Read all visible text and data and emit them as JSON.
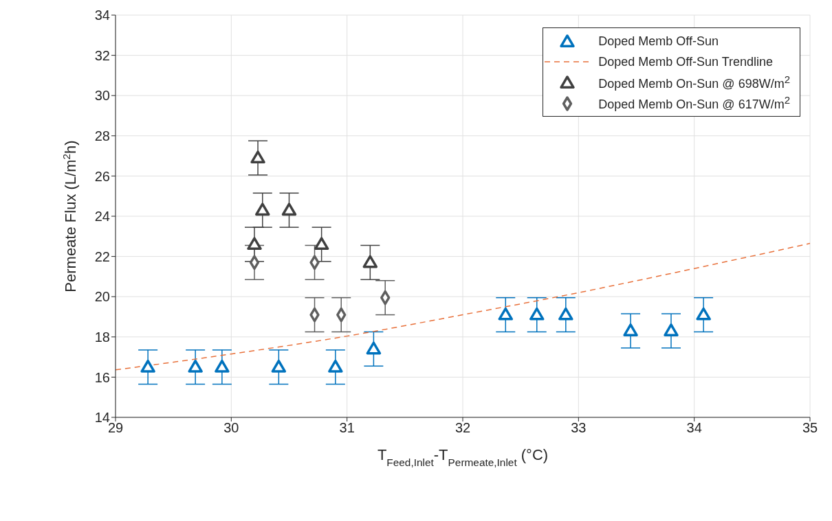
{
  "chart_data": {
    "type": "scatter",
    "xlabel": "T$_{Feed,Inlet}$-T$_{Permeate,Inlet}$ (°C)",
    "ylabel": "Permeate Flux (L/m$^{2}$h)",
    "xlim": [
      29,
      35
    ],
    "xticks": [
      29,
      30,
      31,
      32,
      33,
      34,
      35
    ],
    "ylim": [
      14,
      34
    ],
    "yticks": [
      14,
      16,
      18,
      20,
      22,
      24,
      26,
      28,
      30,
      32,
      34
    ],
    "grid": true,
    "legend": "top right",
    "series": [
      {
        "name": "Doped Memb Off-Sun",
        "color": "#0072bd",
        "marker": "triangle",
        "x": [
          29.28,
          29.69,
          29.92,
          30.41,
          30.9,
          31.23,
          32.37,
          32.64,
          32.89,
          33.45,
          33.8,
          34.08
        ],
        "values": [
          16.5,
          16.5,
          16.5,
          16.5,
          16.5,
          17.4,
          19.1,
          19.1,
          19.1,
          18.3,
          18.3,
          19.1
        ],
        "errors": [
          0.85,
          0.85,
          0.85,
          0.85,
          0.85,
          0.85,
          0.85,
          0.85,
          0.85,
          0.85,
          0.85,
          0.85
        ]
      },
      {
        "name": "Doped Memb Off-Sun Trendline",
        "type": "line",
        "line_style": "dashed",
        "marker": "none",
        "color": "#e8703a",
        "x": [
          29,
          30,
          31,
          32,
          33,
          34,
          35
        ],
        "values": [
          16.36,
          17.15,
          18.04,
          19.1,
          20.2,
          21.4,
          22.65
        ]
      },
      {
        "name": "Doped Memb On-Sun @ 698W/m$^{2}$",
        "color": "#404040",
        "marker": "triangle",
        "x": [
          30.2,
          30.23,
          30.27,
          30.5,
          30.78,
          31.2
        ],
        "values": [
          22.6,
          26.9,
          24.3,
          24.3,
          22.6,
          21.7
        ],
        "errors": [
          0.85,
          0.85,
          0.85,
          0.85,
          0.85,
          0.85
        ]
      },
      {
        "name": "Doped Memb On-Sun @ 617W/m$^{2}$",
        "color": "#5f5f5f",
        "marker": "diamond",
        "x": [
          30.2,
          30.72,
          30.72,
          30.95,
          31.33
        ],
        "values": [
          21.7,
          21.7,
          19.1,
          19.1,
          19.95
        ],
        "errors": [
          0.85,
          0.85,
          0.85,
          0.85,
          0.85
        ]
      }
    ]
  }
}
